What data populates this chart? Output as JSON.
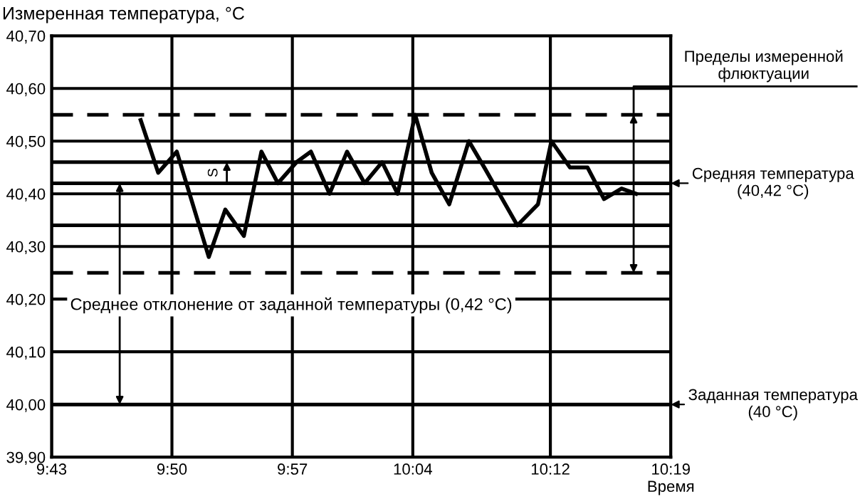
{
  "chart_data": {
    "type": "line",
    "xlabel": "Время",
    "ylabel": "Измеренная температура, °C",
    "x": [
      9.803,
      9.82,
      9.838,
      9.869,
      9.885,
      9.903,
      9.92,
      9.936,
      9.954,
      9.968,
      9.986,
      10.003,
      10.02,
      10.037,
      10.052,
      10.069,
      10.085,
      10.102,
      10.121,
      10.136,
      10.168,
      10.188,
      10.201,
      10.219,
      10.236,
      10.252,
      10.269,
      10.283
    ],
    "series": [
      {
        "color": "#000000",
        "values": [
          40.54,
          40.44,
          40.48,
          40.28,
          40.37,
          40.32,
          40.48,
          40.42,
          40.46,
          40.48,
          40.4,
          40.48,
          40.42,
          40.46,
          40.4,
          40.55,
          40.44,
          40.38,
          40.5,
          40.45,
          40.34,
          40.38,
          40.5,
          40.45,
          40.45,
          40.39,
          40.41,
          40.4
        ]
      }
    ],
    "xlim": [
      9.7167,
      10.3167
    ],
    "xticks": [
      {
        "value": 9.7167,
        "label": "9:43"
      },
      {
        "value": 9.8333,
        "label": "9:50"
      },
      {
        "value": 9.95,
        "label": "9:57"
      },
      {
        "value": 10.0667,
        "label": "10:04"
      },
      {
        "value": 10.2,
        "label": "10:12"
      },
      {
        "value": 10.3167,
        "label": "10:19"
      }
    ],
    "ylim": [
      39.9,
      40.7
    ],
    "yticks": [
      {
        "value": 39.9,
        "label": "39,90"
      },
      {
        "value": 40.0,
        "label": "40,00"
      },
      {
        "value": 40.1,
        "label": "40,10"
      },
      {
        "value": 40.2,
        "label": "40,20"
      },
      {
        "value": 40.3,
        "label": "40,30"
      },
      {
        "value": 40.4,
        "label": "40,40"
      },
      {
        "value": 40.5,
        "label": "40,50"
      },
      {
        "value": 40.6,
        "label": "40,60"
      },
      {
        "value": 40.7,
        "label": "40,70"
      }
    ],
    "grid": true,
    "marker": "none",
    "line_style": "solid",
    "ref_lines": [
      {
        "axis": "y",
        "value": 40.55,
        "line_style": "dashed",
        "color": "#000000"
      },
      {
        "axis": "y",
        "value": 40.46,
        "line_style": "solid",
        "color": "#000000"
      },
      {
        "axis": "y",
        "value": 40.42,
        "line_style": "solid",
        "color": "#000000",
        "label": "Средняя температура\n(40,42 °C)"
      },
      {
        "axis": "y",
        "value": 40.34,
        "line_style": "solid",
        "color": "#000000"
      },
      {
        "axis": "y",
        "value": 40.25,
        "line_style": "dashed",
        "color": "#000000"
      },
      {
        "axis": "y",
        "value": 40.0,
        "line_style": "solid",
        "color": "#000000",
        "label": "Заданная температура\n(40 °C)"
      }
    ],
    "annotations": [
      "S",
      "Среднее отклонение от заданной температуры (0,42 °C)",
      "Пределы измеренной\nфлюктуации"
    ]
  }
}
